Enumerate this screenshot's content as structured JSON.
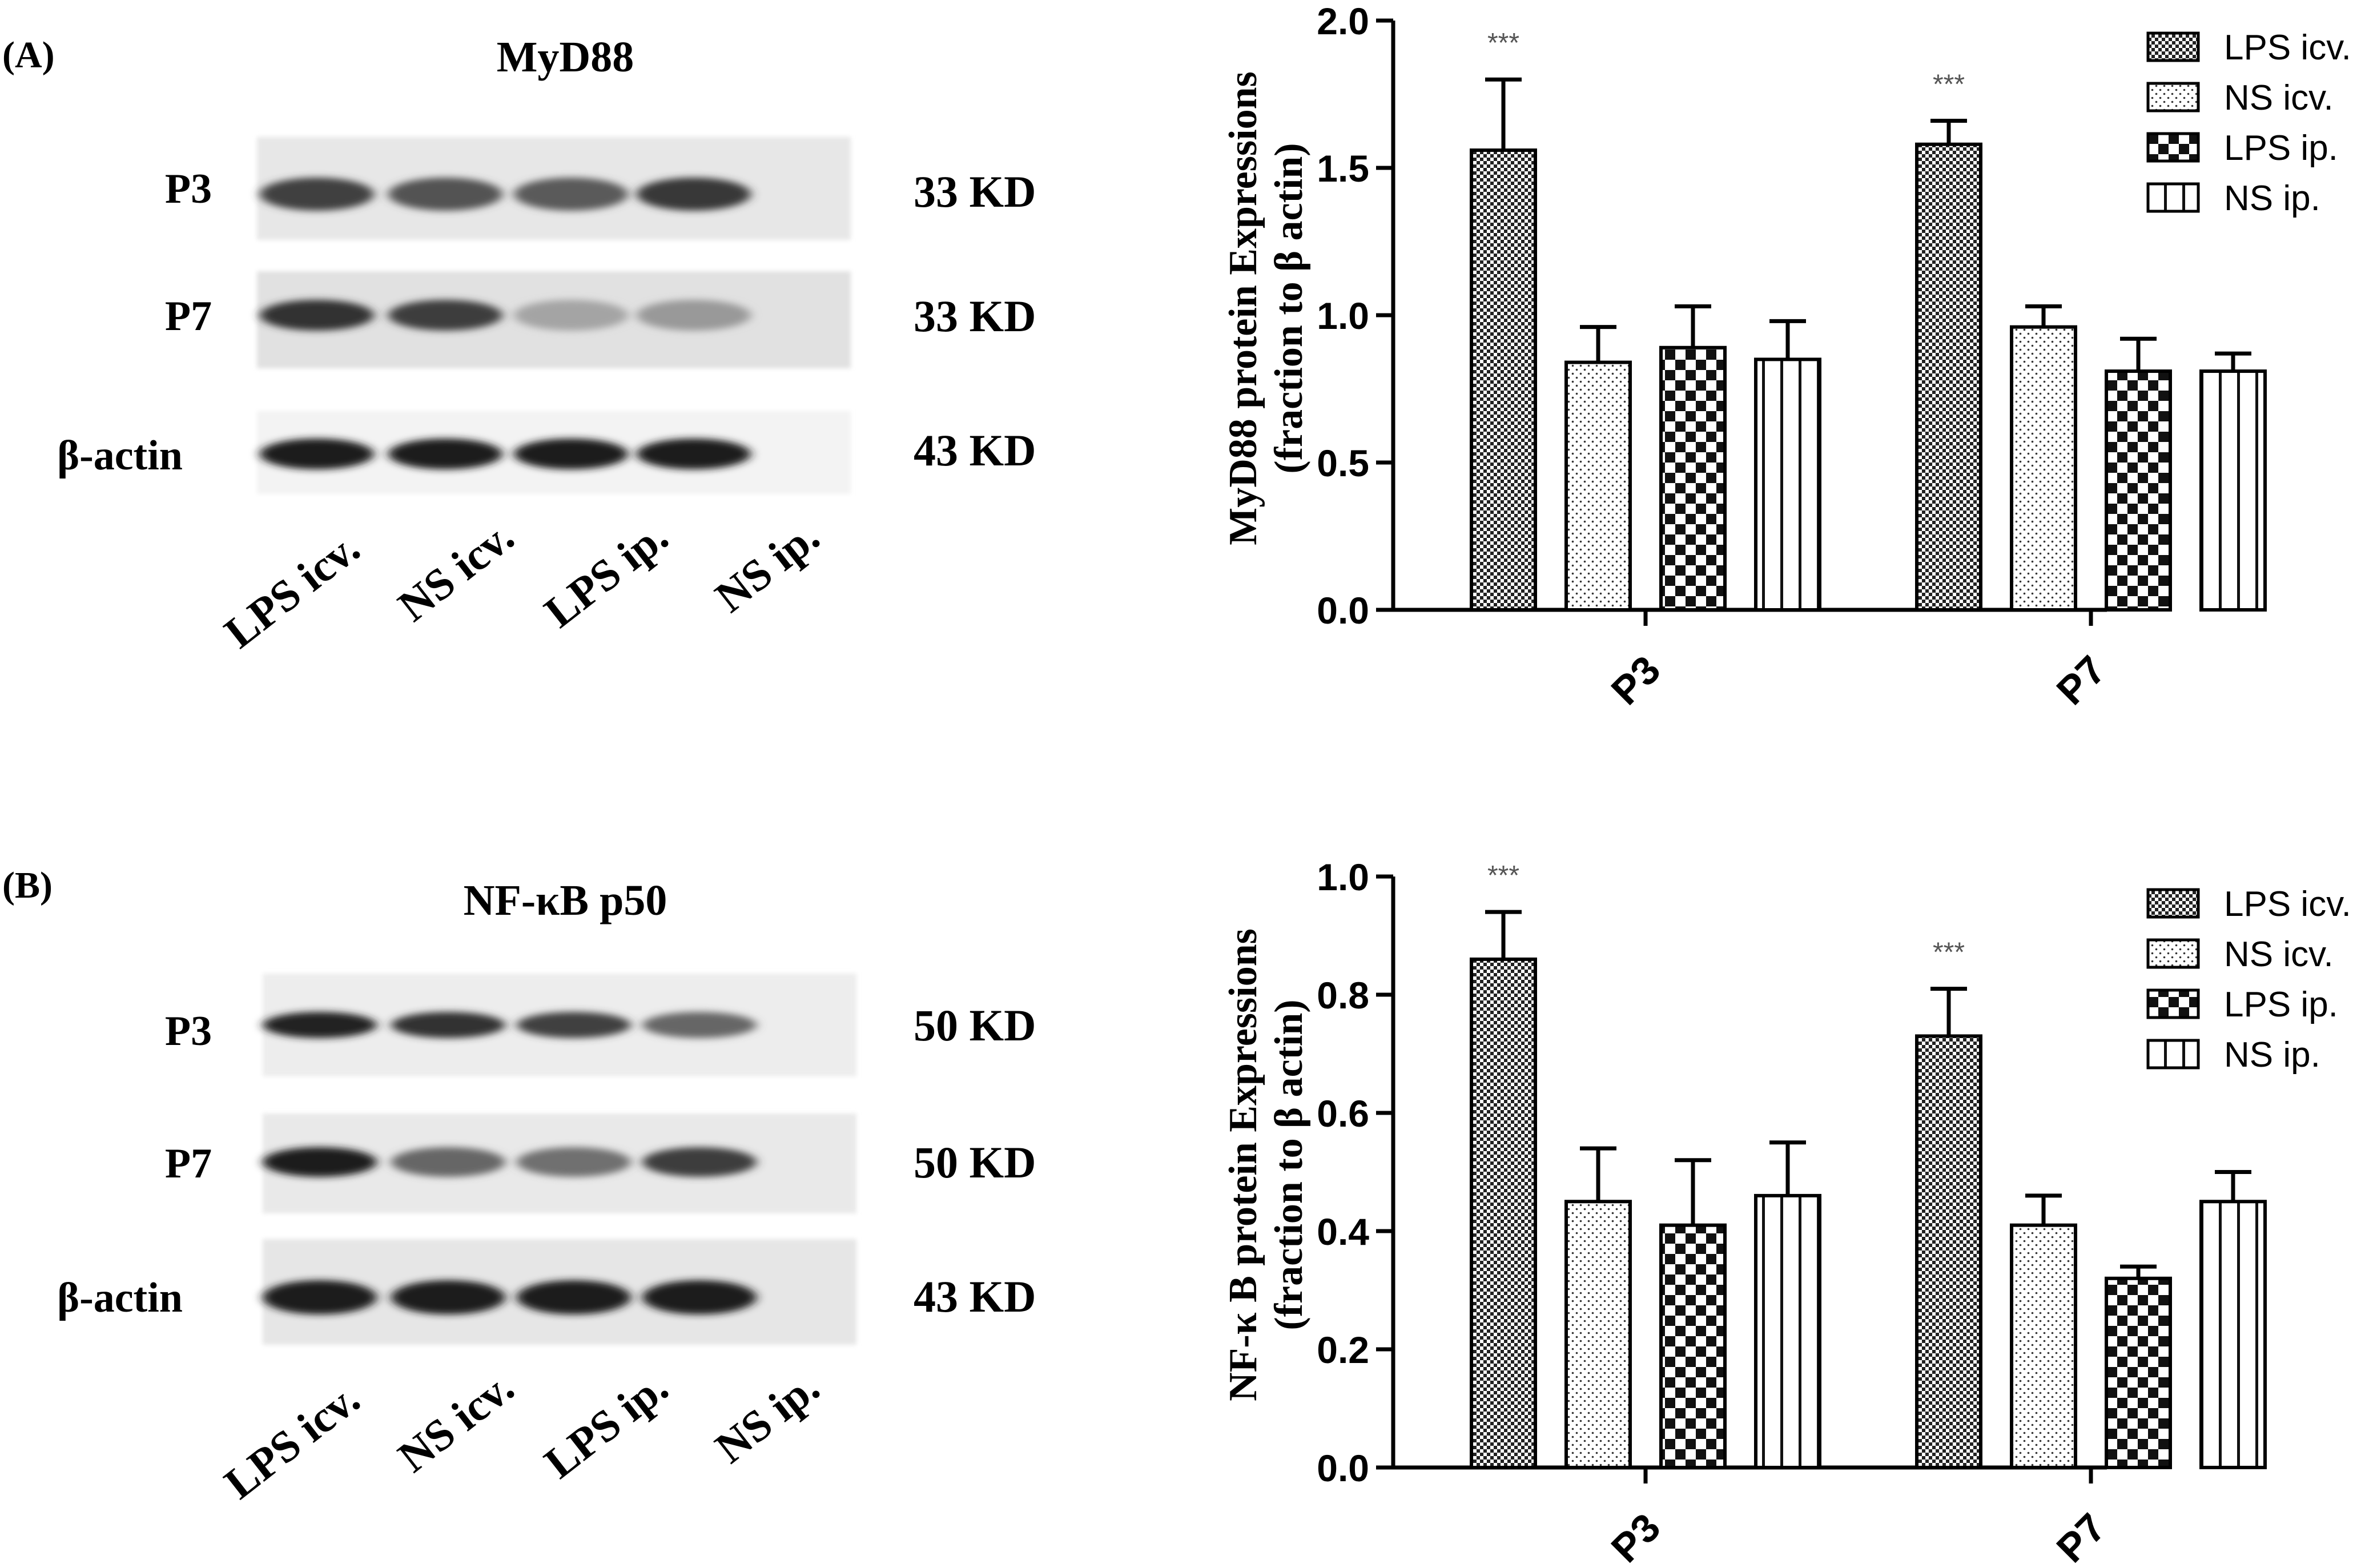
{
  "panels": [
    {
      "panel_label": "(A)",
      "blot": {
        "title": "MyD88",
        "rows": [
          {
            "label": "P3",
            "size": "33 KD",
            "bands": [
              0.78,
              0.7,
              0.66,
              0.82
            ],
            "bg": "#e7e7e7"
          },
          {
            "label": "P7",
            "size": "33 KD",
            "bands": [
              0.85,
              0.8,
              0.3,
              0.35
            ],
            "bg": "#e1e1e1"
          },
          {
            "label": "β-actin",
            "size": "43 KD",
            "bands": [
              0.95,
              0.95,
              0.95,
              0.95
            ],
            "bg": "#f3f3f3"
          }
        ],
        "lanes": [
          "LPS icv.",
          "NS icv.",
          "LPS ip.",
          "NS ip."
        ]
      }
    },
    {
      "panel_label": "(B)",
      "blot": {
        "title": "NF-κB p50",
        "rows": [
          {
            "label": "P3",
            "size": "50 KD",
            "bands": [
              0.92,
              0.85,
              0.78,
              0.6
            ],
            "bg": "#ededed"
          },
          {
            "label": "P7",
            "size": "50 KD",
            "bands": [
              0.95,
              0.6,
              0.55,
              0.8
            ],
            "bg": "#e9e9e9"
          },
          {
            "label": "β-actin",
            "size": "43 KD",
            "bands": [
              0.95,
              0.95,
              0.95,
              0.95
            ],
            "bg": "#e6e6e6"
          }
        ],
        "lanes": [
          "LPS icv.",
          "NS icv.",
          "LPS ip.",
          "NS ip."
        ]
      }
    }
  ],
  "chart_data": [
    {
      "type": "bar",
      "ylabel_line1": "MyD88 protein Expressions",
      "ylabel_line2": "(fraction to β actin)",
      "categories": [
        "P3",
        "P7"
      ],
      "ylim": [
        0,
        2.0
      ],
      "yticks": [
        "0.0",
        "0.5",
        "1.0",
        "1.5",
        "2.0"
      ],
      "legend_position": "top-right",
      "series": [
        {
          "name": "LPS icv.",
          "pattern": "fine-check",
          "values": [
            1.56,
            1.58
          ],
          "errors": [
            0.24,
            0.08
          ]
        },
        {
          "name": "NS icv.",
          "pattern": "dots",
          "values": [
            0.84,
            0.96
          ],
          "errors": [
            0.12,
            0.07
          ]
        },
        {
          "name": "LPS ip.",
          "pattern": "coarse-check",
          "values": [
            0.89,
            0.81
          ],
          "errors": [
            0.14,
            0.11
          ]
        },
        {
          "name": "NS ip.",
          "pattern": "vertical-lines",
          "values": [
            0.85,
            0.81
          ],
          "errors": [
            0.13,
            0.06
          ]
        }
      ],
      "annotations": [
        {
          "text": "***",
          "category": "P3",
          "series": "LPS icv."
        },
        {
          "text": "***",
          "category": "P7",
          "series": "LPS icv."
        }
      ]
    },
    {
      "type": "bar",
      "ylabel_line1": "NF-κ B  protein Expressions",
      "ylabel_line2": "(fraction to β actin)",
      "categories": [
        "P3",
        "P7"
      ],
      "ylim": [
        0,
        1.0
      ],
      "yticks": [
        "0.0",
        "0.2",
        "0.4",
        "0.6",
        "0.8",
        "1.0"
      ],
      "legend_position": "top-right",
      "series": [
        {
          "name": "LPS icv.",
          "pattern": "fine-check",
          "values": [
            0.86,
            0.73
          ],
          "errors": [
            0.08,
            0.08
          ]
        },
        {
          "name": "NS icv.",
          "pattern": "dots",
          "values": [
            0.45,
            0.41
          ],
          "errors": [
            0.09,
            0.05
          ]
        },
        {
          "name": "LPS ip.",
          "pattern": "coarse-check",
          "values": [
            0.41,
            0.32
          ],
          "errors": [
            0.11,
            0.02
          ]
        },
        {
          "name": "NS ip.",
          "pattern": "vertical-lines",
          "values": [
            0.46,
            0.45
          ],
          "errors": [
            0.09,
            0.05
          ]
        }
      ],
      "annotations": [
        {
          "text": "***",
          "category": "P3",
          "series": "LPS icv."
        },
        {
          "text": "***",
          "category": "P7",
          "series": "LPS icv."
        }
      ]
    }
  ]
}
